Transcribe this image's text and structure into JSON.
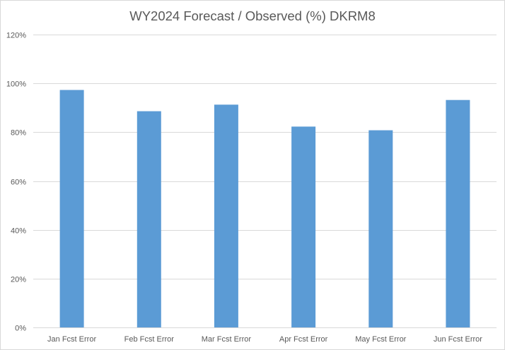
{
  "chart_data": {
    "type": "bar",
    "title": "WY2024 Forecast / Observed (%) DKRM8",
    "categories": [
      "Jan Fcst Error",
      "Feb Fcst Error",
      "Mar Fcst Error",
      "Apr Fcst Error",
      "May Fcst Error",
      "Jun Fcst Error"
    ],
    "values": [
      97.3,
      88.6,
      91.3,
      82.3,
      80.8,
      93.2
    ],
    "ylim": [
      0,
      120
    ],
    "yticks": [
      "0%",
      "20%",
      "40%",
      "60%",
      "80%",
      "100%",
      "120%"
    ],
    "xlabel": "",
    "ylabel": "",
    "grid": true,
    "legend": "none",
    "colors": {
      "bar": "#5b9bd5",
      "grid": "#d9d9d9",
      "text": "#595959"
    }
  }
}
